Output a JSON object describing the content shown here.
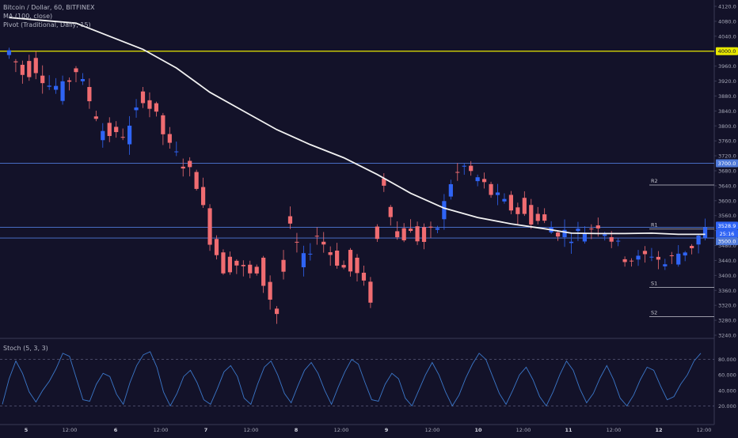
{
  "legend": {
    "symbol": "Bitcoin / Dollar, 60, BITFINEX",
    "ma": "MA (100, close)",
    "pivot": "Pivot (Traditional, Daily, 15)"
  },
  "stoch_title": "Stoch (5, 3, 3)",
  "colors": {
    "background": "#131229",
    "up": "#2f64f5",
    "down": "#f06c71",
    "ma": "#f2f2f2",
    "level_yellow": "#e8e800",
    "level_blue": "#4f79d9",
    "pivot": "#c8c8d0",
    "stoch": "#3b77c9",
    "axis_text": "#a7a9b8"
  },
  "chart_data": {
    "type": "candlestick",
    "price_axis": {
      "min": 3240,
      "max": 4120,
      "ticks": [
        "3240.0",
        "3280.0",
        "3320.0",
        "3360.0",
        "3400.0",
        "3440.0",
        "3480.0",
        "3520.0",
        "3560.0",
        "3600.0",
        "3640.0",
        "3680.0",
        "3720.0",
        "3760.0",
        "3800.0",
        "3840.0",
        "3880.0",
        "3920.0",
        "3960.0",
        "4000.0",
        "4040.0",
        "4080.0",
        "4120.0"
      ]
    },
    "x_labels": [
      "5",
      "12:00",
      "6",
      "12:00",
      "7",
      "12:00",
      "8",
      "12:00",
      "9",
      "12:00",
      "10",
      "12:00",
      "11",
      "12:00",
      "12",
      "12:00"
    ],
    "price_tags": {
      "level_4000": "4000.0",
      "level_3700": "3700.0",
      "current": "3528.9",
      "countdown": "25:16",
      "level_3500": "3500.0"
    },
    "levels": [
      {
        "value": 4000,
        "style": "yellow"
      },
      {
        "value": 3700,
        "style": "blue"
      },
      {
        "value": 3528.9,
        "style": "blue"
      },
      {
        "value": 3500,
        "style": "blue"
      }
    ],
    "pivots": [
      {
        "label": "R2",
        "value": 3642
      },
      {
        "label": "R1",
        "value": 3524
      },
      {
        "label": "S1",
        "value": 3368
      },
      {
        "label": "S2",
        "value": 3290
      }
    ],
    "stoch_axis": {
      "ticks": [
        "80.000",
        "60.000",
        "40.000",
        "20.000"
      ],
      "upper": 80,
      "lower": 20
    },
    "anchors": [
      [
        0,
        3990,
        4000
      ],
      [
        2,
        3960,
        3940
      ],
      [
        4,
        3975,
        3955
      ],
      [
        6,
        3920,
        3910
      ],
      [
        8,
        3880,
        3900
      ],
      [
        10,
        3960,
        3950
      ],
      [
        12,
        3900,
        3870
      ],
      [
        14,
        3780,
        3790
      ],
      [
        16,
        3800,
        3770
      ],
      [
        18,
        3760,
        3790
      ],
      [
        20,
        3890,
        3880
      ],
      [
        22,
        3870,
        3820
      ],
      [
        24,
        3780,
        3740
      ],
      [
        26,
        3710,
        3700
      ],
      [
        28,
        3690,
        3650
      ],
      [
        30,
        3580,
        3500
      ],
      [
        32,
        3450,
        3420
      ],
      [
        34,
        3440,
        3430
      ],
      [
        36,
        3420,
        3400
      ],
      [
        38,
        3460,
        3380
      ],
      [
        40,
        3310,
        3300
      ],
      [
        42,
        3560,
        3520
      ],
      [
        44,
        3420,
        3440
      ],
      [
        46,
        3500,
        3510
      ],
      [
        48,
        3480,
        3460
      ],
      [
        50,
        3440,
        3420
      ],
      [
        52,
        3460,
        3400
      ],
      [
        54,
        3370,
        3340
      ],
      [
        56,
        3660,
        3650
      ],
      [
        58,
        3520,
        3500
      ],
      [
        60,
        3540,
        3510
      ],
      [
        62,
        3520,
        3490
      ],
      [
        64,
        3510,
        3530
      ],
      [
        66,
        3620,
        3650
      ],
      [
        68,
        3700,
        3690
      ],
      [
        70,
        3650,
        3660
      ],
      [
        72,
        3640,
        3620
      ],
      [
        74,
        3600,
        3590
      ],
      [
        76,
        3600,
        3570
      ],
      [
        78,
        3590,
        3550
      ],
      [
        80,
        3560,
        3540
      ],
      [
        82,
        3510,
        3520
      ],
      [
        84,
        3500,
        3510
      ],
      [
        86,
        3510,
        3520
      ],
      [
        88,
        3530,
        3540
      ],
      [
        90,
        3520,
        3500
      ],
      [
        92,
        3460,
        3450
      ],
      [
        94,
        3450,
        3440
      ],
      [
        96,
        3450,
        3460
      ],
      [
        98,
        3440,
        3430
      ],
      [
        100,
        3445,
        3460
      ],
      [
        102,
        3470,
        3480
      ],
      [
        104,
        3500,
        3528.9
      ]
    ],
    "ma_path": [
      [
        0,
        4090
      ],
      [
        10,
        4075
      ],
      [
        20,
        4005
      ],
      [
        25,
        3955
      ],
      [
        30,
        3890
      ],
      [
        35,
        3840
      ],
      [
        40,
        3790
      ],
      [
        45,
        3750
      ],
      [
        50,
        3715
      ],
      [
        55,
        3670
      ],
      [
        60,
        3620
      ],
      [
        65,
        3580
      ],
      [
        70,
        3555
      ],
      [
        75,
        3538
      ],
      [
        80,
        3525
      ],
      [
        84,
        3513
      ],
      [
        88,
        3512
      ],
      [
        92,
        3512
      ],
      [
        96,
        3513
      ],
      [
        100,
        3510
      ],
      [
        104,
        3510
      ]
    ],
    "stoch_values": [
      22,
      55,
      78,
      62,
      38,
      25,
      40,
      52,
      68,
      88,
      84,
      56,
      28,
      26,
      48,
      62,
      58,
      35,
      22,
      50,
      72,
      86,
      90,
      70,
      38,
      20,
      36,
      58,
      66,
      50,
      28,
      22,
      42,
      64,
      72,
      58,
      30,
      22,
      48,
      70,
      78,
      60,
      36,
      24,
      46,
      66,
      76,
      62,
      40,
      22,
      44,
      64,
      80,
      74,
      50,
      28,
      26,
      48,
      62,
      55,
      30,
      20,
      40,
      60,
      76,
      60,
      38,
      20,
      34,
      56,
      74,
      88,
      80,
      58,
      36,
      22,
      40,
      60,
      70,
      54,
      32,
      20,
      38,
      60,
      78,
      66,
      42,
      24,
      36,
      56,
      72,
      54,
      30,
      20,
      34,
      54,
      70,
      66,
      46,
      28,
      32,
      48,
      60,
      78,
      88
    ]
  }
}
